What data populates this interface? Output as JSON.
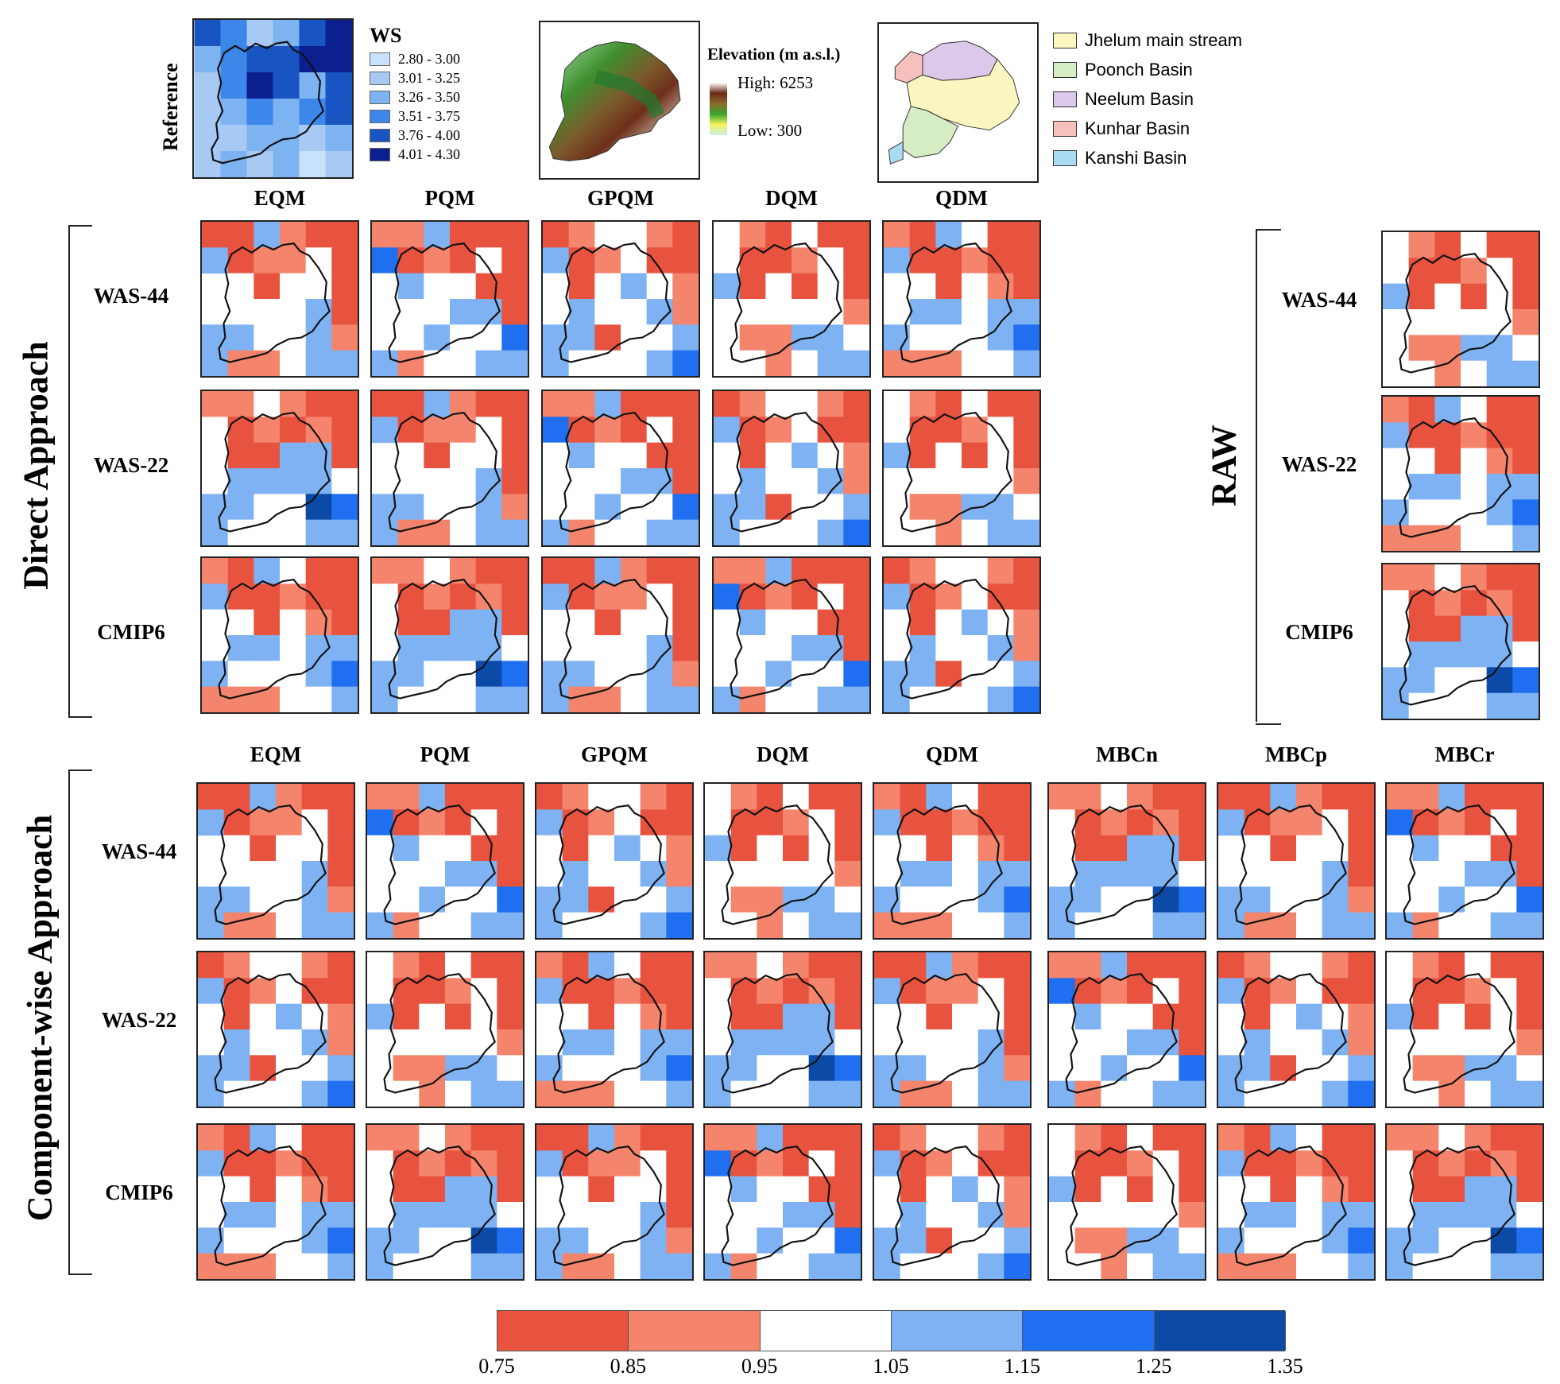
{
  "reference": {
    "side_label": "Reference",
    "legend_title": "WS",
    "legend_items": [
      {
        "range": "2.80 - 3.00",
        "color": "#c6e3fb"
      },
      {
        "range": "3.01 - 3.25",
        "color": "#a8c9f3"
      },
      {
        "range": "3.26 - 3.50",
        "color": "#7eb3f2"
      },
      {
        "range": "3.51 - 3.75",
        "color": "#3d86ea"
      },
      {
        "range": "3.76 - 4.00",
        "color": "#1955c2"
      },
      {
        "range": "4.01 - 4.30",
        "color": "#0b1f8f"
      }
    ]
  },
  "elevation": {
    "title": "Elevation (m a.s.l.)",
    "high": "High: 6253",
    "low": "Low: 300"
  },
  "basins": [
    {
      "name": "Jhelum main stream",
      "color": "#fbf5c0"
    },
    {
      "name": "Poonch Basin",
      "color": "#d5ecc4"
    },
    {
      "name": "Neelum Basin",
      "color": "#dcc9e9"
    },
    {
      "name": "Kunhar Basin",
      "color": "#f6c1bd"
    },
    {
      "name": "Kanshi Basin",
      "color": "#a9dcf3"
    }
  ],
  "direct": {
    "group_label": "Direct Approach",
    "methods": [
      "EQM",
      "PQM",
      "GPQM",
      "DQM",
      "QDM"
    ],
    "rows": [
      "WAS-44",
      "WAS-22",
      "CMIP6"
    ]
  },
  "raw": {
    "group_label": "RAW",
    "rows": [
      "WAS-44",
      "WAS-22",
      "CMIP6"
    ]
  },
  "component": {
    "group_label": "Component-wise Approach",
    "methods": [
      "EQM",
      "PQM",
      "GPQM",
      "DQM",
      "QDM",
      "MBCn",
      "MBCp",
      "MBCr"
    ],
    "rows": [
      "WAS-44",
      "WAS-22",
      "CMIP6"
    ]
  },
  "colorbar": {
    "ticks": [
      "0.75",
      "0.85",
      "0.95",
      "1.05",
      "1.15",
      "1.25",
      "1.35"
    ],
    "colors": [
      "#e8533f",
      "#f4846c",
      "#ffffff",
      "#7eb2f2",
      "#1f6ff0",
      "#0c4aa8"
    ]
  }
}
